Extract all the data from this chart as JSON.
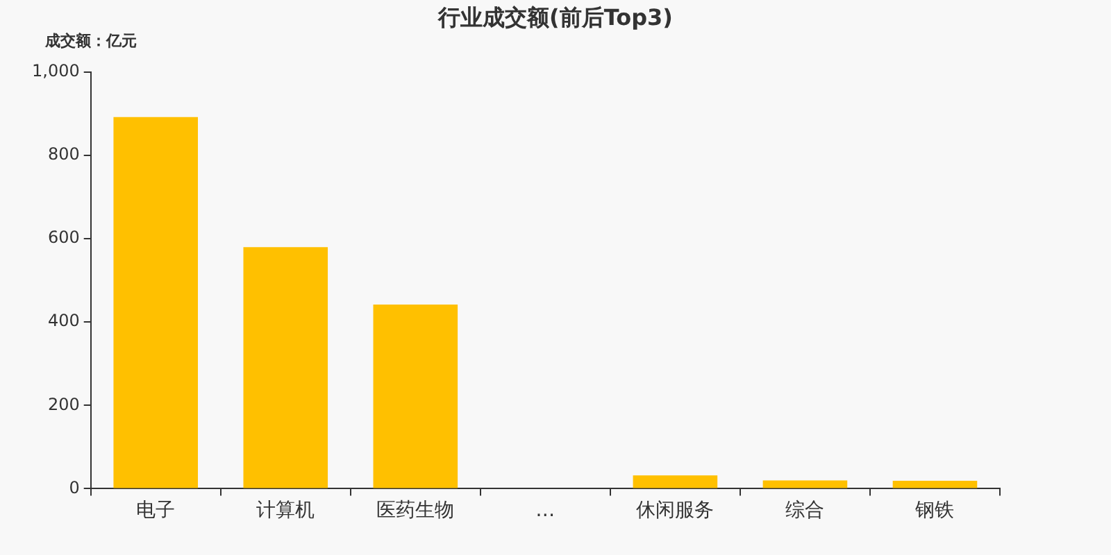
{
  "chart_data": {
    "type": "bar",
    "title": "行业成交额(前后Top3)",
    "ylabel": "成交额：亿元",
    "categories": [
      "电子",
      "计算机",
      "医药生物",
      "…",
      "休闲服务",
      "综合",
      "钢铁"
    ],
    "values": [
      892,
      580,
      442,
      null,
      32,
      20,
      19
    ],
    "color": "#ffc000",
    "ylim": [
      0,
      1000
    ],
    "yticks": [
      0,
      200,
      400,
      600,
      800,
      {
        "value": 1000,
        "label": "1,000"
      }
    ],
    "grid": false
  }
}
